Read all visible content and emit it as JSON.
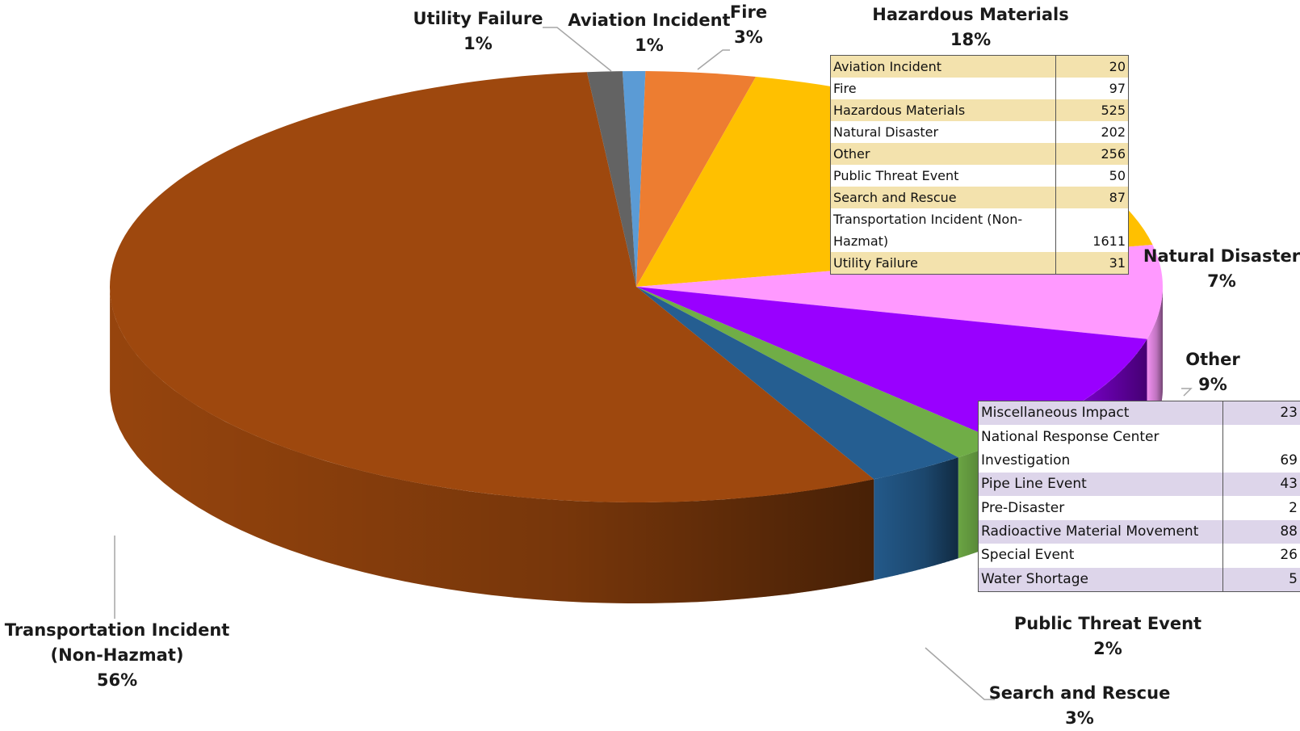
{
  "chart_data": {
    "type": "pie",
    "style": "3d",
    "slices": [
      {
        "label": "Aviation Incident",
        "percent": "1%",
        "value": 20,
        "color": "#5b9bd5"
      },
      {
        "label": "Fire",
        "percent": "3%",
        "value": 97,
        "color": "#ed7d31"
      },
      {
        "label": "Hazardous Materials",
        "percent": "18%",
        "value": 525,
        "color": "#ffc000"
      },
      {
        "label": "Natural Disaster",
        "percent": "7%",
        "value": 202,
        "color": "#ff99ff"
      },
      {
        "label": "Other",
        "percent": "9%",
        "value": 256,
        "color": "#9900ff"
      },
      {
        "label": "Public Threat Event",
        "percent": "2%",
        "value": 50,
        "color": "#70ad47"
      },
      {
        "label": "Search and Rescue",
        "percent": "3%",
        "value": 87,
        "color": "#255e91"
      },
      {
        "label": "Transportation Incident (Non-Hazmat)",
        "percent": "56%",
        "value": 1611,
        "color": "#9e480e"
      },
      {
        "label": "Utility Failure",
        "percent": "1%",
        "value": 31,
        "color": "#636363"
      }
    ],
    "labels": {
      "utility_failure": [
        "Utility Failure",
        "1%"
      ],
      "aviation": [
        "Aviation Incident",
        "1%"
      ],
      "fire": [
        "Fire",
        "3%"
      ],
      "hazmat": [
        "Hazardous Materials",
        "18%"
      ],
      "natural": [
        "Natural Disaster",
        "7%"
      ],
      "other": [
        "Other",
        "9%"
      ],
      "public_threat": [
        "Public Threat Event",
        "2%"
      ],
      "search_rescue": [
        "Search and Rescue",
        "3%"
      ],
      "transport": [
        "Transportation Incident",
        "(Non-Hazmat)",
        "56%"
      ]
    },
    "table_totals": {
      "rows": [
        {
          "name": "Aviation Incident",
          "value": "20"
        },
        {
          "name": "Fire",
          "value": "97"
        },
        {
          "name": "Hazardous Materials",
          "value": "525"
        },
        {
          "name": "Natural Disaster",
          "value": "202"
        },
        {
          "name": "Other",
          "value": "256"
        },
        {
          "name": "Public Threat Event",
          "value": "50"
        },
        {
          "name": "Search and Rescue",
          "value": "87"
        },
        {
          "name": "Transportation Incident (Non-Hazmat)",
          "value": "1611"
        },
        {
          "name": "Utility Failure",
          "value": "31"
        }
      ]
    },
    "table_other": {
      "rows": [
        {
          "name": "Miscellaneous Impact",
          "value": "23"
        },
        {
          "name": "National Response Center Investigation",
          "value": "69"
        },
        {
          "name": "Pipe Line Event",
          "value": "43"
        },
        {
          "name": "Pre-Disaster",
          "value": "2"
        },
        {
          "name": "Radioactive Material Movement",
          "value": "88"
        },
        {
          "name": "Special Event",
          "value": "26"
        },
        {
          "name": "Water Shortage",
          "value": "5"
        }
      ]
    }
  }
}
